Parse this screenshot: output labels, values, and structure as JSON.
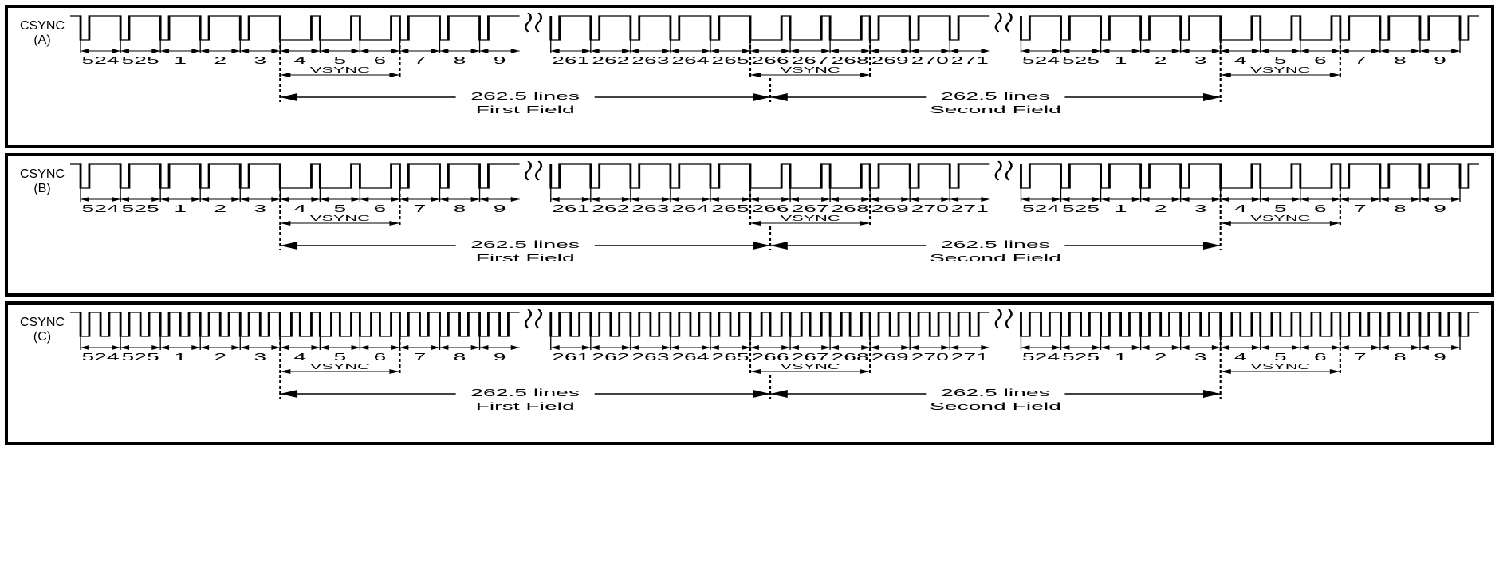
{
  "panels": [
    {
      "id": "A",
      "label_top": "CSYNC",
      "label_bottom": "(A)",
      "double_rate": false
    },
    {
      "id": "B",
      "label_top": "CSYNC",
      "label_bottom": "(B)",
      "double_rate": false
    },
    {
      "id": "C",
      "label_top": "CSYNC",
      "label_bottom": "(C)",
      "double_rate": true
    }
  ],
  "colors": {
    "stroke": "#000000",
    "bg": "#ffffff"
  },
  "wave": {
    "hi": 6,
    "lo": 36,
    "baseline": 36,
    "unit": 23,
    "hs_pulse": 5,
    "vs_notch": 5
  },
  "segments": [
    {
      "type": "hsync",
      "lines": [
        "524",
        "525",
        "1",
        "2",
        "3"
      ]
    },
    {
      "type": "vsync",
      "lines": [
        "4",
        "5",
        "6"
      ],
      "vsync_label": true,
      "field_start": true
    },
    {
      "type": "hsync",
      "lines": [
        "7",
        "8",
        "9"
      ]
    },
    {
      "type": "break"
    },
    {
      "type": "hsync",
      "lines": [
        "261",
        "262",
        "263",
        "264",
        "265"
      ]
    },
    {
      "type": "half"
    },
    {
      "type": "vsync",
      "lines": [
        "266",
        "267",
        "268"
      ],
      "vsync_label": true,
      "vsync_half_before": true
    },
    {
      "type": "half2"
    },
    {
      "type": "hsync",
      "lines": [
        "269",
        "270",
        "271"
      ],
      "after_half": true
    },
    {
      "type": "break"
    },
    {
      "type": "hsync",
      "lines": [
        "524",
        "525",
        "1",
        "2",
        "3"
      ]
    },
    {
      "type": "vsync",
      "lines": [
        "4",
        "5",
        "6"
      ],
      "vsync_label": true
    },
    {
      "type": "hsync",
      "lines": [
        "7",
        "8",
        "9"
      ]
    }
  ],
  "fields": {
    "span_text": "262.5 lines",
    "first": "First Field",
    "second": "Second Field"
  },
  "vsync_text": "VSYNC"
}
